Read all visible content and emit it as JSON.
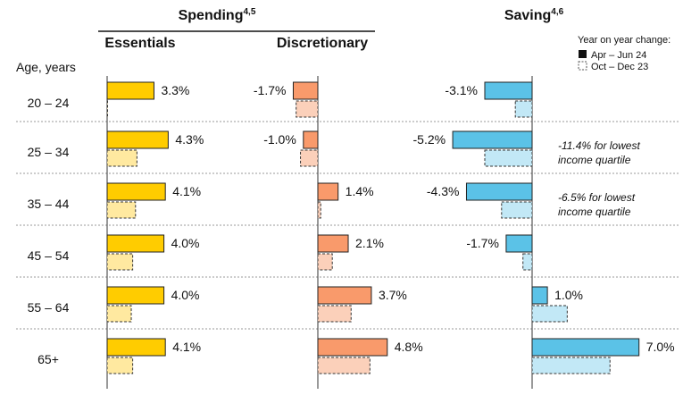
{
  "chart_data": {
    "type": "bar",
    "orientation": "horizontal",
    "y_axis_label": "Age, years",
    "categories": [
      "20 – 24",
      "25 – 34",
      "35 – 44",
      "45 – 54",
      "55 – 64",
      "65+"
    ],
    "panels": [
      {
        "group": "Spending",
        "group_sup": "4,5",
        "title": "Essentials",
        "color": "#FFCC00",
        "color_prior": "#FFE9A0",
        "latest": [
          3.3,
          4.3,
          4.1,
          4.0,
          4.0,
          4.1
        ],
        "prior": [
          0.0,
          2.1,
          2.0,
          1.8,
          1.7,
          1.8
        ],
        "labels": [
          "3.3%",
          "4.3%",
          "4.1%",
          "4.0%",
          "4.0%",
          "4.1%"
        ]
      },
      {
        "group": "Spending",
        "title": "Discretionary",
        "color": "#F99A6B",
        "color_prior": "#FBD0BA",
        "latest": [
          -1.7,
          -1.0,
          1.4,
          2.1,
          3.7,
          4.8
        ],
        "prior": [
          -1.5,
          -1.2,
          0.2,
          1.0,
          2.3,
          3.6
        ],
        "labels": [
          "-1.7%",
          "-1.0%",
          "1.4%",
          "2.1%",
          "3.7%",
          "4.8%"
        ]
      },
      {
        "group": "Saving",
        "group_sup": "4,6",
        "title": "",
        "color": "#5BC2E7",
        "color_prior": "#C2E8F6",
        "latest": [
          -3.1,
          -5.2,
          -4.3,
          -1.7,
          1.0,
          7.0
        ],
        "prior": [
          -1.1,
          -3.1,
          -2.0,
          -0.6,
          2.3,
          5.1
        ],
        "labels": [
          "-3.1%",
          "-5.2%",
          "-4.3%",
          "-1.7%",
          "1.0%",
          "7.0%"
        ]
      }
    ],
    "annotations": [
      {
        "row": 1,
        "lines": [
          "-11.4% for lowest",
          "income quartile"
        ]
      },
      {
        "row": 2,
        "lines": [
          "-6.5% for lowest",
          "income quartile"
        ]
      }
    ],
    "legend": {
      "title": "Year on year change:",
      "placement": "top-right",
      "items": [
        {
          "label": "Apr – Jun 24",
          "style": "solid"
        },
        {
          "label": "Oct – Dec 23",
          "style": "dashed"
        }
      ]
    }
  }
}
